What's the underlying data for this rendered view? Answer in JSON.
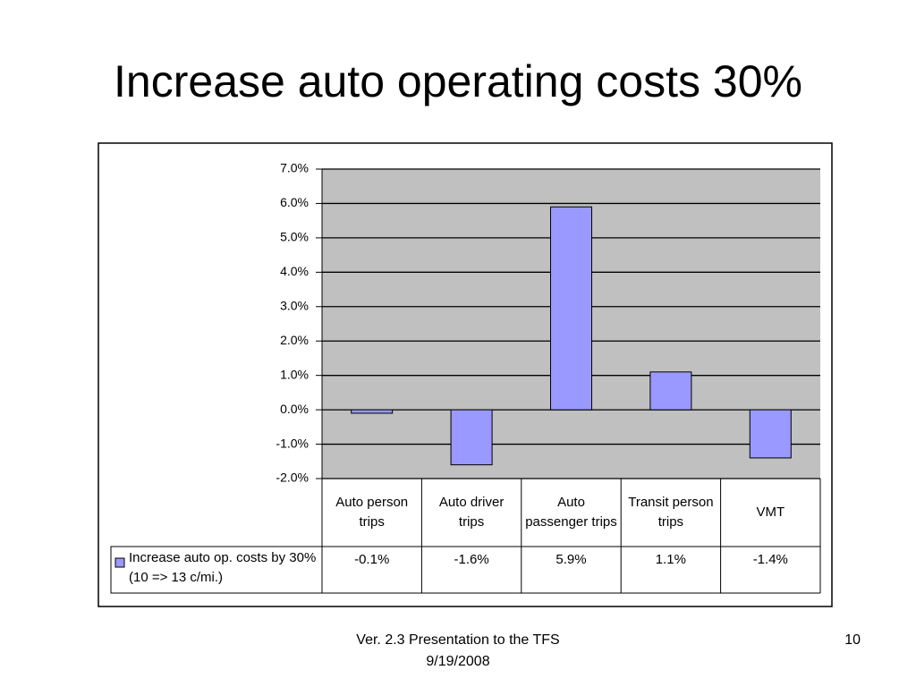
{
  "chart_data": {
    "type": "bar",
    "title": "Increase auto operating costs 30%",
    "categories": [
      "Auto person trips",
      "Auto driver trips",
      "Auto passenger trips",
      "Transit person trips",
      "VMT"
    ],
    "series": [
      {
        "name": "Increase auto op. costs by 30% (10 => 13 c/mi.)",
        "color": "#9999ff",
        "values": [
          -0.1,
          -1.6,
          5.9,
          1.1,
          -1.4
        ],
        "value_labels": [
          "-0.1%",
          "-1.6%",
          "5.9%",
          "1.1%",
          "-1.4%"
        ]
      }
    ],
    "ylim": [
      -2,
      7
    ],
    "yticks": [
      {
        "value": -2,
        "label": "-2.0%"
      },
      {
        "value": -1,
        "label": "-1.0%"
      },
      {
        "value": 0,
        "label": "0.0%"
      },
      {
        "value": 1,
        "label": "1.0%"
      },
      {
        "value": 2,
        "label": "2.0%"
      },
      {
        "value": 3,
        "label": "3.0%"
      },
      {
        "value": 4,
        "label": "4.0%"
      },
      {
        "value": 5,
        "label": "5.0%"
      },
      {
        "value": 6,
        "label": "6.0%"
      },
      {
        "value": 7,
        "label": "7.0%"
      }
    ],
    "grid": true
  },
  "footer": {
    "text": "Ver. 2.3 Presentation to the TFS",
    "date": "9/19/2008",
    "page": "10"
  }
}
